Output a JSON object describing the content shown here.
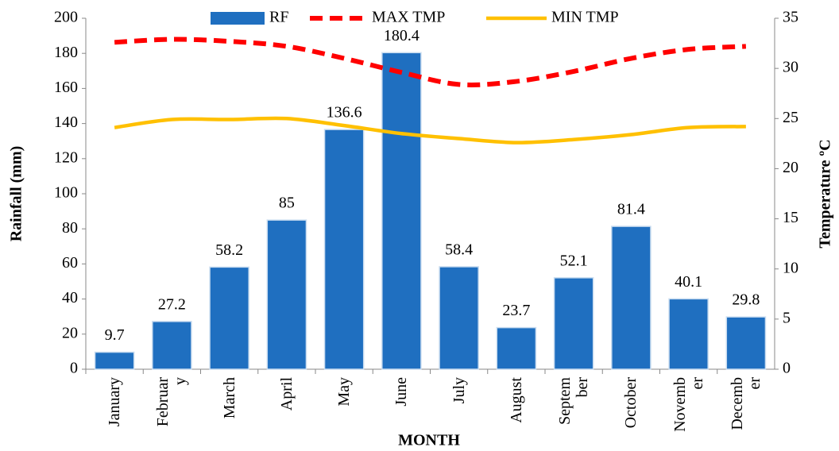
{
  "chart_data": {
    "type": "bar-line",
    "x_label": "MONTH",
    "y_label": "Rainfall (mm)",
    "y2_label": "Temperature ºC",
    "categories": [
      "January",
      "Februar\ny",
      "March",
      "April",
      "May",
      "June",
      "July",
      "August",
      "Septem\nber",
      "October",
      "Novemb\ner",
      "Decemb\ner"
    ],
    "series": [
      {
        "name": "RF",
        "type": "bar",
        "color": "#1f6fc0",
        "values": [
          9.7,
          27.2,
          58.2,
          85,
          136.6,
          180.4,
          58.4,
          23.7,
          52.1,
          81.4,
          40.1,
          29.8
        ]
      },
      {
        "name": "MAX TMP",
        "type": "line",
        "dashed": true,
        "color": "#ff0000",
        "axis": "y2",
        "values": [
          32.6,
          32.9,
          32.7,
          32.2,
          31.0,
          29.6,
          28.4,
          28.7,
          29.7,
          31.0,
          31.9,
          32.2
        ]
      },
      {
        "name": "MIN TMP",
        "type": "line",
        "dashed": false,
        "color": "#ffc000",
        "axis": "y2",
        "values": [
          24.1,
          24.9,
          24.9,
          25.0,
          24.3,
          23.5,
          23.0,
          22.6,
          22.9,
          23.4,
          24.1,
          24.2
        ]
      }
    ],
    "ylim": [
      0,
      200
    ],
    "yticks": [
      0,
      20,
      40,
      60,
      80,
      100,
      120,
      140,
      160,
      180,
      200
    ],
    "y2lim": [
      0,
      35
    ],
    "y2ticks": [
      0,
      5,
      10,
      15,
      20,
      25,
      30,
      35
    ],
    "legend": "top",
    "grid": false
  }
}
